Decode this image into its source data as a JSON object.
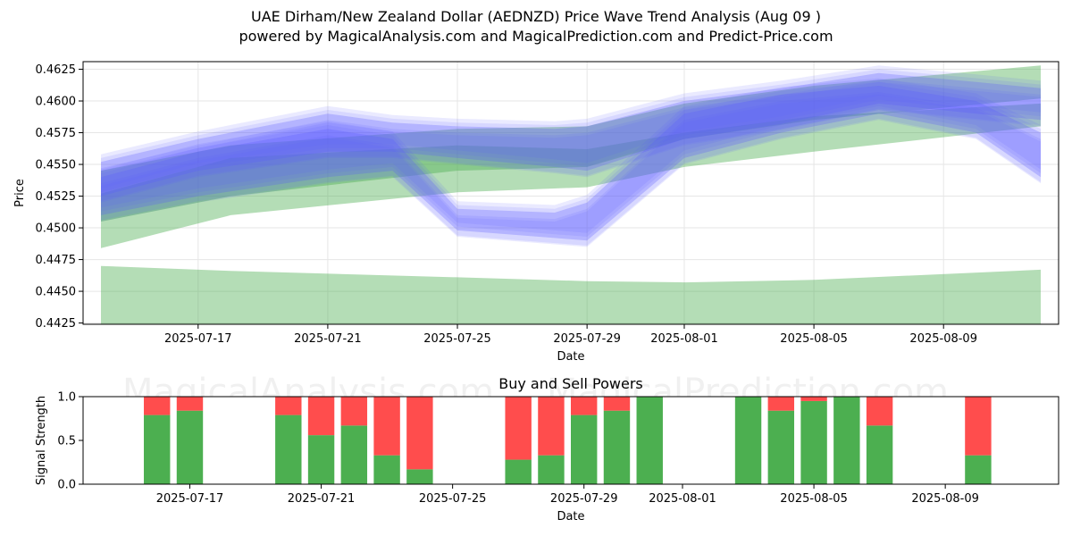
{
  "header": {
    "title": "UAE Dirham/New Zealand Dollar (AEDNZD) Price Wave Trend Analysis (Aug 09 )",
    "subtitle": "powered by MagicalAnalysis.com and MagicalPrediction.com and Predict-Price.com"
  },
  "watermarks": [
    "MagicalAnalysis.com",
    "MagicalPrediction.com"
  ],
  "colors": {
    "blue_band": "#5a5aff",
    "green_band": "#4caf50",
    "buy": "#4caf50",
    "sell": "#ff4d4d",
    "grid": "#e6e6e6"
  },
  "chart_data": [
    {
      "type": "area",
      "title": "",
      "xlabel": "Date",
      "ylabel": "Price",
      "ylim": [
        0.4424,
        0.4631
      ],
      "xlim": [
        "2025-07-14",
        "2025-08-12"
      ],
      "x_ticks": [
        "2025-07-17",
        "2025-07-21",
        "2025-07-25",
        "2025-07-29",
        "2025-08-01",
        "2025-08-05",
        "2025-08-09"
      ],
      "y_ticks": [
        "0.4425",
        "0.4450",
        "0.4475",
        "0.4500",
        "0.4525",
        "0.4550",
        "0.4575",
        "0.4600",
        "0.4625"
      ],
      "grid": true,
      "series": [
        {
          "band": "green",
          "x": [
            "2025-07-14",
            "2025-07-18",
            "2025-07-25",
            "2025-07-29",
            "2025-08-01",
            "2025-08-05",
            "2025-08-12"
          ],
          "upper": [
            0.4527,
            0.4555,
            0.4565,
            0.4562,
            0.4575,
            0.4588,
            0.4598
          ],
          "lower": [
            0.4484,
            0.451,
            0.4528,
            0.4532,
            0.4548,
            0.456,
            0.458
          ]
        },
        {
          "band": "green",
          "x": [
            "2025-07-14",
            "2025-07-18",
            "2025-07-25",
            "2025-07-29",
            "2025-08-01",
            "2025-08-05",
            "2025-08-12"
          ],
          "upper": [
            0.4545,
            0.4565,
            0.4578,
            0.458,
            0.4598,
            0.4612,
            0.4628
          ],
          "lower": [
            0.4505,
            0.4525,
            0.4545,
            0.4548,
            0.457,
            0.4585,
            0.4602
          ]
        },
        {
          "band": "green",
          "x": [
            "2025-07-14",
            "2025-07-18",
            "2025-07-25",
            "2025-07-29",
            "2025-08-01",
            "2025-08-05",
            "2025-08-12"
          ],
          "upper": [
            0.447,
            0.4466,
            0.4461,
            0.4458,
            0.4457,
            0.4459,
            0.4467
          ],
          "lower": [
            0.4422,
            0.4422,
            0.4422,
            0.4422,
            0.4422,
            0.4422,
            0.4422
          ]
        },
        {
          "band": "blue",
          "x": [
            "2025-07-14",
            "2025-07-17",
            "2025-07-21",
            "2025-07-23",
            "2025-07-25",
            "2025-07-28",
            "2025-07-29",
            "2025-08-01",
            "2025-08-04",
            "2025-08-07",
            "2025-08-10",
            "2025-08-12"
          ],
          "upper": [
            0.4552,
            0.457,
            0.459,
            0.4583,
            0.458,
            0.4578,
            0.458,
            0.46,
            0.461,
            0.4622,
            0.4615,
            0.461
          ],
          "lower": [
            0.4525,
            0.4545,
            0.456,
            0.456,
            0.4555,
            0.4548,
            0.4545,
            0.457,
            0.4582,
            0.4598,
            0.459,
            0.4585
          ]
        },
        {
          "band": "blue",
          "x": [
            "2025-07-14",
            "2025-07-17",
            "2025-07-21",
            "2025-07-23",
            "2025-07-25",
            "2025-07-28",
            "2025-07-29",
            "2025-08-01",
            "2025-08-04",
            "2025-08-07",
            "2025-08-10",
            "2025-08-12"
          ],
          "upper": [
            0.454,
            0.456,
            0.4578,
            0.457,
            0.4515,
            0.4512,
            0.452,
            0.459,
            0.4605,
            0.4612,
            0.46,
            0.4575
          ],
          "lower": [
            0.451,
            0.4525,
            0.454,
            0.4545,
            0.4498,
            0.4492,
            0.449,
            0.4555,
            0.4575,
            0.459,
            0.4575,
            0.454
          ]
        }
      ]
    },
    {
      "type": "bar",
      "title": "Buy and Sell Powers",
      "xlabel": "Date",
      "ylabel": "Signal Strength",
      "ylim": [
        0,
        1
      ],
      "y_ticks": [
        "0.0",
        "0.5",
        "1.0"
      ],
      "x_ticks": [
        "2025-07-17",
        "2025-07-21",
        "2025-07-25",
        "2025-07-29",
        "2025-08-01",
        "2025-08-05",
        "2025-08-09"
      ],
      "series": [
        {
          "name": "Buy",
          "color": "#4caf50"
        },
        {
          "name": "Sell",
          "color": "#ff4d4d"
        }
      ],
      "bars": [
        {
          "x": "2025-07-16",
          "buy": 0.79
        },
        {
          "x": "2025-07-17",
          "buy": 0.84
        },
        {
          "x": "2025-07-20",
          "buy": 0.79
        },
        {
          "x": "2025-07-21",
          "buy": 0.56
        },
        {
          "x": "2025-07-22",
          "buy": 0.67
        },
        {
          "x": "2025-07-23",
          "buy": 0.33
        },
        {
          "x": "2025-07-24",
          "buy": 0.17
        },
        {
          "x": "2025-07-27",
          "buy": 0.28
        },
        {
          "x": "2025-07-28",
          "buy": 0.33
        },
        {
          "x": "2025-07-29",
          "buy": 0.79
        },
        {
          "x": "2025-07-30",
          "buy": 0.84
        },
        {
          "x": "2025-07-31",
          "buy": 1.0
        },
        {
          "x": "2025-08-03",
          "buy": 1.0
        },
        {
          "x": "2025-08-04",
          "buy": 0.84
        },
        {
          "x": "2025-08-05",
          "buy": 0.95
        },
        {
          "x": "2025-08-06",
          "buy": 1.0
        },
        {
          "x": "2025-08-07",
          "buy": 0.67
        },
        {
          "x": "2025-08-10",
          "buy": 0.33
        }
      ]
    }
  ]
}
